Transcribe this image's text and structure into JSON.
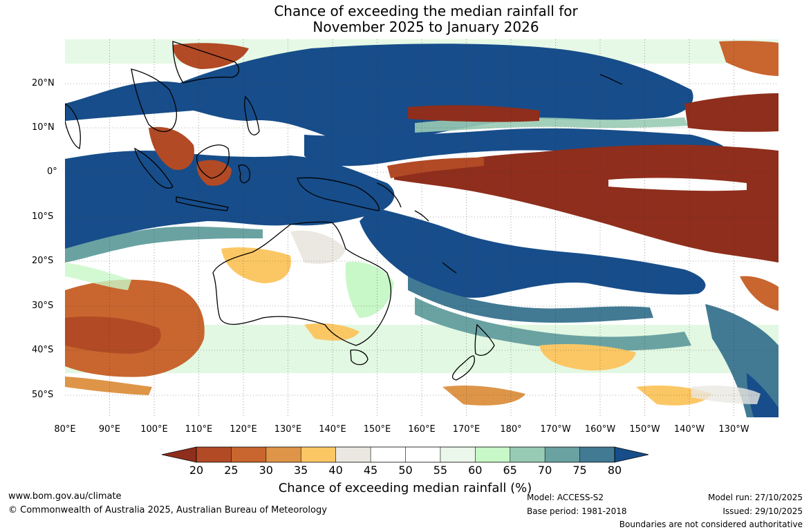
{
  "title": {
    "line1": "Chance of exceeding the median rainfall for",
    "line2": "November 2025 to January 2026"
  },
  "map": {
    "lat_labels": [
      "20°N",
      "10°N",
      "0°",
      "10°S",
      "20°S",
      "30°S",
      "40°S",
      "50°S"
    ],
    "lon_labels": [
      "80°E",
      "90°E",
      "100°E",
      "110°E",
      "120°E",
      "130°E",
      "140°E",
      "150°E",
      "160°E",
      "170°E",
      "180°",
      "170°W",
      "160°W",
      "150°W",
      "140°W",
      "130°W"
    ],
    "lat_range": [
      -55,
      30
    ],
    "lon_range": [
      80,
      240
    ]
  },
  "colorbar": {
    "ticks": [
      "20",
      "25",
      "30",
      "35",
      "40",
      "45",
      "50",
      "55",
      "60",
      "65",
      "70",
      "75",
      "80"
    ],
    "colors": [
      "#8f2e1c",
      "#b24a25",
      "#c9652f",
      "#de9548",
      "#fbc765",
      "#ebe8e2",
      "#ffffff",
      "#ffffff",
      "#eaf7ea",
      "#c8f7c8",
      "#98cbb4",
      "#6aa2a2",
      "#427a94",
      "#174d8a"
    ],
    "label": "Chance of exceeding median rainfall (%)"
  },
  "footer": {
    "website": "www.bom.gov.au/climate",
    "copyright": "© Commonwealth of Australia 2025, Australian Bureau of Meteorology",
    "model": "Model: ACCESS-S2",
    "base_period": "Base period: 1981-2018",
    "model_run": "Model run: 27/10/2025",
    "issued": "Issued: 29/10/2025",
    "disclaimer": "Boundaries are not considered authoritative"
  }
}
